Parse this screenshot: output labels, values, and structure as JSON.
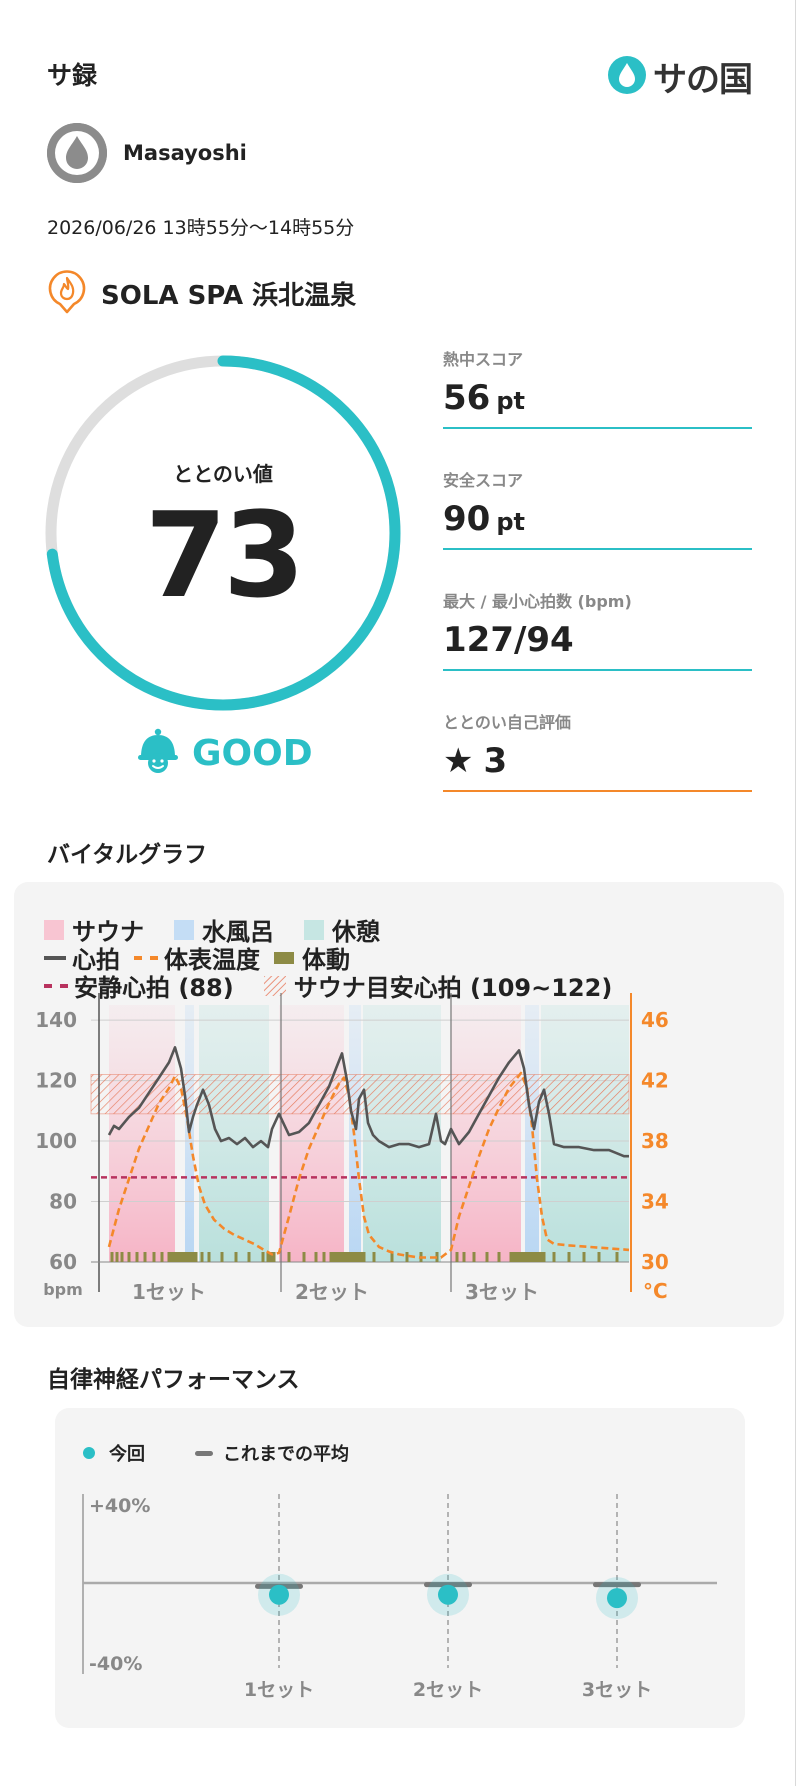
{
  "header": {
    "title": "サ録",
    "logo_text": "サの国",
    "logo_icon": "water-drop-icon",
    "brand_color": "#2bbfc6"
  },
  "user": {
    "name": "Masayoshi",
    "avatar_icon": "drop-avatar-icon"
  },
  "session": {
    "datetime": "2026/06/26 13時55分〜14時55分"
  },
  "facility": {
    "name": "SOLA SPA 浜北温泉",
    "icon": "sauna-flame-pin-icon",
    "icon_color": "#f4882a"
  },
  "totonoi": {
    "label": "ととのい値",
    "value": "73",
    "score": 73,
    "max": 100,
    "rating": "GOOD",
    "rating_icon": "bell-face-icon"
  },
  "stats": [
    {
      "label": "熱中スコア",
      "value": "56",
      "unit": "pt"
    },
    {
      "label": "安全スコア",
      "value": "90",
      "unit": "pt"
    },
    {
      "label": "最大 / 最小心拍数 (bpm)",
      "value": "127/94",
      "unit": ""
    },
    {
      "label": "ととのい自己評価",
      "value": "3",
      "unit": "",
      "icon": "star-icon"
    }
  ],
  "vital": {
    "title": "バイタルグラフ",
    "legend": {
      "sauna": "サウナ",
      "cold_bath": "水風呂",
      "rest": "休憩",
      "heart_rate": "心拍",
      "body_temp": "体表温度",
      "movement": "体動",
      "resting_hr": "安静心拍 (88)",
      "sauna_target": "サウナ目安心拍 (109~122)"
    },
    "colors": {
      "sauna": "#f8c5d2",
      "cold_bath": "#c4ddf5",
      "rest": "#c6e6e3",
      "heart_rate": "#555555",
      "body_temp": "#f4882a",
      "movement": "#8d8b45",
      "resting_hr": "#b8325e",
      "target": "#e87a5d"
    }
  },
  "chart_data": {
    "type": "line",
    "title": "",
    "left_axis": {
      "label": "bpm",
      "ticks": [
        "140",
        "120",
        "100",
        "80",
        "60"
      ],
      "range": [
        60,
        145
      ]
    },
    "right_axis": {
      "label": "°C",
      "ticks": [
        "46",
        "42",
        "38",
        "34",
        "30"
      ],
      "range": [
        30,
        47
      ]
    },
    "x_labels": [
      "1セット",
      "2セット",
      "3セット"
    ],
    "resting_hr": 88,
    "target_hr": [
      109,
      122
    ],
    "phases": [
      {
        "type": "sauna",
        "start": 0.0,
        "end": 6.6
      },
      {
        "type": "cold",
        "start": 7.6,
        "end": 8.5
      },
      {
        "type": "rest",
        "start": 9.0,
        "end": 16.0
      },
      {
        "type": "sauna",
        "start": 17.0,
        "end": 23.5
      },
      {
        "type": "cold",
        "start": 24.0,
        "end": 25.2
      },
      {
        "type": "rest",
        "start": 25.4,
        "end": 33.2
      },
      {
        "type": "sauna",
        "start": 34.2,
        "end": 41.2
      },
      {
        "type": "cold",
        "start": 41.6,
        "end": 43.0
      },
      {
        "type": "rest",
        "start": 43.2,
        "end": 52.0
      }
    ],
    "set_starts": [
      0.9,
      17.2,
      34.2
    ],
    "series": [
      {
        "name": "心拍",
        "x": [
          0.0,
          0.5,
          1.0,
          2.0,
          3.0,
          4.0,
          5.0,
          6.0,
          6.6,
          7.2,
          7.6,
          8.0,
          8.4,
          8.8,
          9.4,
          10.0,
          10.6,
          11.2,
          12.0,
          12.8,
          13.6,
          14.4,
          15.2,
          15.9,
          16.3,
          17.0,
          18.0,
          19.0,
          20.0,
          21.0,
          22.0,
          22.7,
          23.3,
          23.8,
          24.2,
          24.7,
          25.0,
          25.5,
          25.9,
          26.4,
          27.0,
          28.0,
          29.0,
          30.0,
          31.0,
          32.0,
          32.7,
          33.2,
          33.6,
          34.2,
          35.0,
          36.0,
          37.0,
          38.0,
          39.0,
          40.0,
          41.0,
          41.5,
          42.0,
          42.5,
          43.0,
          43.5,
          44.0,
          44.5,
          45.5,
          47.0,
          48.5,
          50.0,
          51.5,
          52.0
        ],
        "values": [
          102,
          105,
          104,
          108,
          111,
          116,
          121,
          126,
          131,
          124,
          115,
          103,
          108,
          112,
          117,
          112,
          104,
          100,
          101,
          99,
          101,
          98,
          100,
          98,
          104,
          109,
          102,
          103,
          106,
          112,
          118,
          124,
          129,
          120,
          110,
          104,
          114,
          117,
          106,
          102,
          100,
          98,
          99,
          99,
          98,
          99,
          109,
          100,
          99,
          104,
          99,
          103,
          109,
          115,
          121,
          126,
          130,
          124,
          112,
          104,
          113,
          117,
          109,
          99,
          98,
          98,
          97,
          97,
          95,
          95
        ]
      },
      {
        "name": "体表温度",
        "x": [
          0.0,
          1.0,
          2.0,
          3.0,
          4.0,
          5.0,
          6.0,
          6.6,
          7.2,
          7.8,
          8.4,
          9.0,
          9.6,
          10.5,
          11.5,
          12.5,
          13.5,
          14.5,
          15.5,
          16.3,
          17.0,
          18.0,
          19.0,
          20.0,
          21.0,
          22.0,
          23.0,
          23.5,
          24.0,
          24.5,
          25.0,
          25.5,
          26.0,
          27.0,
          28.0,
          29.0,
          30.0,
          31.0,
          32.0,
          33.2,
          34.2,
          35.0,
          36.0,
          37.0,
          38.0,
          39.0,
          40.0,
          41.2,
          41.8,
          42.3,
          42.8,
          43.3,
          43.8,
          44.5,
          46.0,
          48.0,
          50.0,
          52.0
        ],
        "values": [
          31.0,
          33.5,
          35.5,
          37.5,
          39.0,
          40.5,
          41.5,
          42.3,
          41.5,
          39.5,
          37.0,
          35.0,
          33.8,
          32.8,
          32.2,
          31.8,
          31.5,
          31.2,
          30.8,
          30.5,
          30.6,
          33.0,
          35.5,
          37.5,
          39.0,
          40.5,
          41.8,
          42.2,
          41.0,
          38.5,
          35.5,
          33.0,
          31.8,
          31.0,
          30.7,
          30.5,
          30.4,
          30.3,
          30.3,
          30.3,
          30.8,
          33.0,
          35.0,
          37.0,
          38.8,
          40.2,
          41.5,
          42.5,
          41.5,
          39.0,
          35.5,
          33.0,
          31.5,
          31.2,
          31.1,
          31.0,
          30.9,
          30.8
        ]
      }
    ],
    "movement_marks": [
      0.3,
      0.8,
      1.3,
      2.0,
      2.8,
      3.6,
      4.5,
      5.3,
      6.0,
      6.3,
      6.6,
      6.9,
      7.2,
      7.5,
      7.8,
      8.1,
      8.4,
      8.7,
      9.3,
      10.0,
      11.3,
      12.7,
      14.0,
      15.4,
      15.9,
      16.2,
      16.5,
      18.0,
      19.5,
      20.7,
      21.5,
      22.2,
      22.5,
      22.8,
      23.1,
      23.4,
      23.7,
      24.0,
      24.3,
      24.6,
      24.9,
      25.2,
      25.5,
      26.5,
      28.3,
      29.8,
      31.2,
      32.8,
      34.8,
      35.5,
      36.5,
      37.8,
      39.0,
      40.2,
      40.5,
      40.8,
      41.1,
      41.4,
      41.7,
      42.0,
      42.3,
      42.6,
      42.9,
      43.2,
      43.5,
      44.5,
      46.0,
      47.5,
      49.0,
      50.8
    ]
  },
  "ans": {
    "title": "自律神経パフォーマンス",
    "legend_current": "今回",
    "legend_average": "これまでの平均",
    "y_top": "+40%",
    "y_bottom": "-40%",
    "sets": [
      {
        "label": "1セット",
        "current": -7,
        "average": -2
      },
      {
        "label": "2セット",
        "current": -7,
        "average": -1
      },
      {
        "label": "3セット",
        "current": -9,
        "average": -1
      }
    ]
  }
}
